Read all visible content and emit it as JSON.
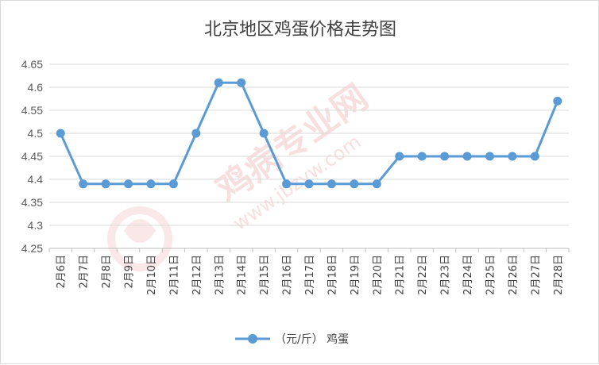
{
  "chart_data": {
    "type": "line",
    "title": "北京地区鸡蛋价格走势图",
    "categories": [
      "2月6日",
      "2月7日",
      "2月8日",
      "2月9日",
      "2月10日",
      "2月11日",
      "2月12日",
      "2月13日",
      "2月14日",
      "2月15日",
      "2月16日",
      "2月17日",
      "2月18日",
      "2月19日",
      "2月20日",
      "2月21日",
      "2月22日",
      "2月23日",
      "2月24日",
      "2月25日",
      "2月26日",
      "2月27日",
      "2月28日"
    ],
    "series": [
      {
        "name": "（元/斤） 鸡蛋",
        "values": [
          4.5,
          4.39,
          4.39,
          4.39,
          4.39,
          4.39,
          4.5,
          4.61,
          4.61,
          4.5,
          4.39,
          4.39,
          4.39,
          4.39,
          4.39,
          4.45,
          4.45,
          4.45,
          4.45,
          4.45,
          4.45,
          4.45,
          4.57
        ],
        "color": "#5b9bd5"
      }
    ],
    "ylim": [
      4.25,
      4.65
    ],
    "yticks": [
      "4.25",
      "4.3",
      "4.35",
      "4.4",
      "4.45",
      "4.5",
      "4.55",
      "4.6",
      "4.65"
    ],
    "grid": true,
    "legend": "bottom",
    "watermark": {
      "text": "鸡病专业网",
      "url": "www.jbzyw.com",
      "color": "#f2c4c4"
    }
  }
}
